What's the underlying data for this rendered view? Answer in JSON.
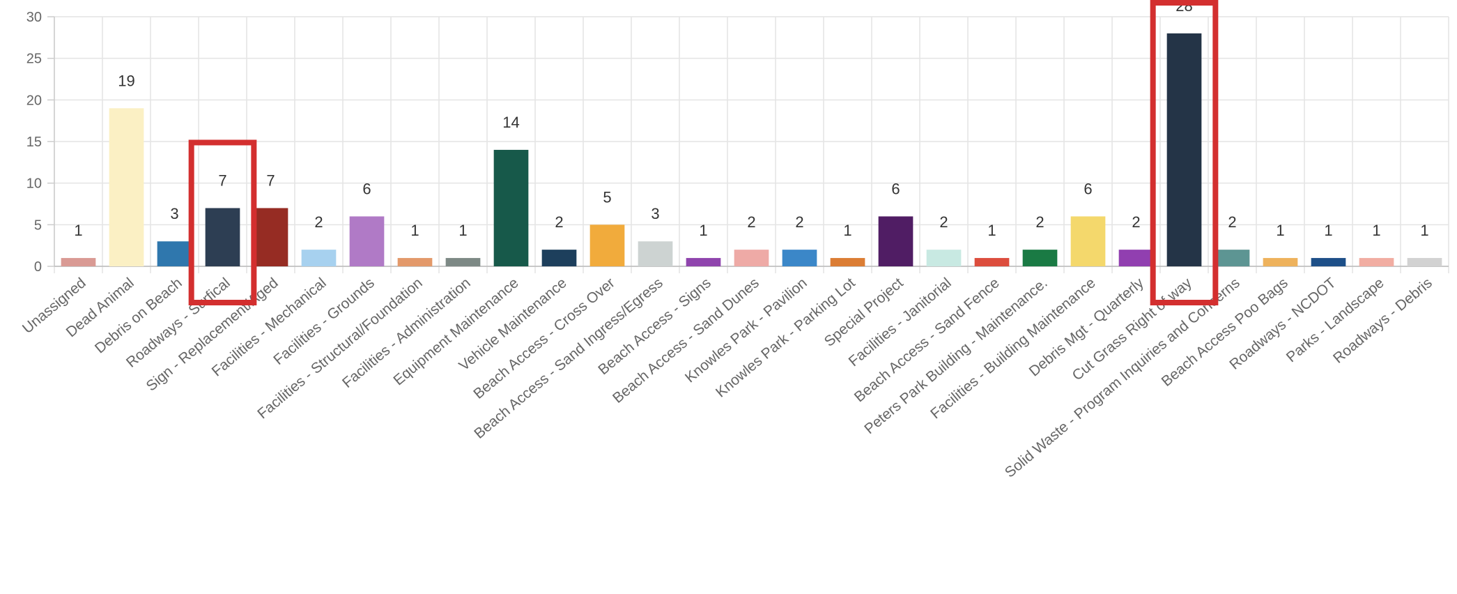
{
  "chart_data": {
    "type": "bar",
    "categories": [
      "Unassigned",
      "Dead Animal",
      "Debris on Beach",
      "Roadways - Surfical",
      "Sign - Replacement/Aged",
      "Facilities - Mechanical",
      "Facilities - Grounds",
      "Facilities - Structural/Foundation",
      "Facilities - Administration",
      "Equipment Maintenance",
      "Vehicle Maintenance",
      "Beach Access - Cross Over",
      "Beach Access - Sand Ingress/Egress",
      "Beach Access - Signs",
      "Beach Access - Sand Dunes",
      "Knowles Park - Pavilion",
      "Knowles Park - Parking Lot",
      "Special Project",
      "Facilities - Janitorial",
      "Beach Access - Sand Fence",
      "Peters Park Building - Maintenance.",
      "Facilities - Building Maintenance",
      "Debris Mgt - Quarterly",
      "Cut Grass Right of way",
      "Solid Waste - Program Inquiries and Concerns",
      "Beach Access Poo Bags",
      "Roadways - NCDOT",
      "Parks - Landscape",
      "Roadways - Debris"
    ],
    "values": [
      1,
      19,
      3,
      7,
      7,
      2,
      6,
      1,
      1,
      14,
      2,
      5,
      3,
      1,
      2,
      2,
      1,
      6,
      2,
      1,
      2,
      6,
      2,
      28,
      2,
      1,
      1,
      1,
      1
    ],
    "data_labels": [
      "1",
      "19",
      "3",
      "7",
      "7",
      "2",
      "6",
      "1",
      "1",
      "14",
      "2",
      "5",
      "3",
      "1",
      "2",
      "2",
      "1",
      "6",
      "2",
      "1",
      "2",
      "6",
      "2",
      "28",
      "2",
      "1",
      "1",
      "1",
      "1"
    ],
    "colors": [
      "#d99a94",
      "#fbf0c4",
      "#2f77ad",
      "#2d3e53",
      "#962c23",
      "#a7d1ef",
      "#b07ac6",
      "#e3996a",
      "#7d8985",
      "#17594a",
      "#1d3f5c",
      "#f1ab3c",
      "#cdd3d2",
      "#8f44ad",
      "#eeaaa6",
      "#3b87c8",
      "#db7d34",
      "#501d64",
      "#c8e9e2",
      "#dc4d3d",
      "#1a7a44",
      "#f4d86c",
      "#913fb0",
      "#243447",
      "#5d9593",
      "#eeb25c",
      "#1d4f88",
      "#f1ada2",
      "#d2d2d2"
    ],
    "ylim": [
      0,
      30
    ],
    "yticks": [
      "0",
      "5",
      "10",
      "15",
      "20",
      "25",
      "30"
    ],
    "grid": true,
    "highlight_boxes": [
      "Roadways - Surfical",
      "Cut Grass Right of way"
    ],
    "highlight_color": "#d32f2f",
    "title": "",
    "xlabel": "",
    "ylabel": ""
  }
}
